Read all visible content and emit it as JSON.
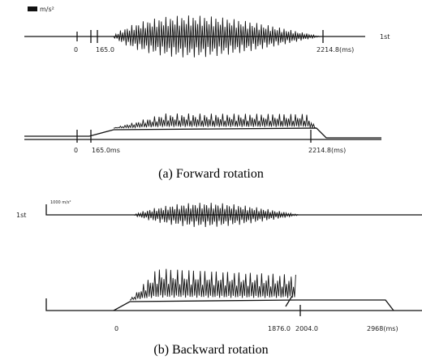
{
  "panel_a": {
    "caption": "(a) Forward rotation",
    "unit": "m/s²",
    "trace_1": {
      "label": "1st",
      "ticks": [
        "0",
        "165.0",
        "2214.8(ms)"
      ]
    },
    "trace_2": {
      "ticks": [
        "0",
        "165.0ms",
        "2214.8(ms)"
      ]
    }
  },
  "panel_b": {
    "caption": "(b) Backward rotation",
    "unit": "1000 m/s²",
    "trace_1": {
      "label": "1st"
    },
    "trace_2": {
      "ticks": [
        "0",
        "1876.0",
        "2004.0",
        "2968(ms)"
      ]
    }
  }
}
